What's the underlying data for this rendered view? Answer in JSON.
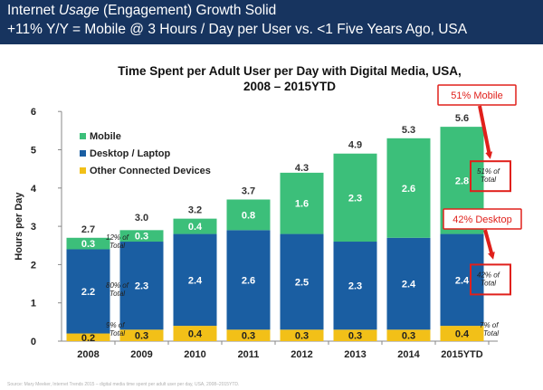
{
  "header": {
    "line1_a": "Internet ",
    "line1_b": "Usage",
    "line1_c": " (Engagement) Growth Solid",
    "line2": "+11% Y/Y = Mobile @ 3 Hours / Day per User vs. <1  Five Years Ago, USA",
    "bg_color": "#17345f"
  },
  "chart_data": {
    "type": "bar",
    "stacked": true,
    "title_line1": "Time Spent per Adult User per Day with Digital Media, USA,",
    "title_line2": "2008 – 2015YTD",
    "ylabel": "Hours per Day",
    "ylim": [
      0,
      6
    ],
    "yticks": [
      "0",
      "1",
      "2",
      "3",
      "4",
      "5",
      "6"
    ],
    "grid": false,
    "legend_position": "top-left",
    "categories": [
      "2008",
      "2009",
      "2010",
      "2011",
      "2012",
      "2013",
      "2014",
      "2015YTD"
    ],
    "series": [
      {
        "name": "Other Connected Devices",
        "color": "#f2c018",
        "values": [
          0.2,
          0.3,
          0.4,
          0.3,
          0.3,
          0.3,
          0.3,
          0.4
        ],
        "labels": [
          "0.2",
          "0.3",
          "0.4",
          "0.3",
          "0.3",
          "0.3",
          "0.3",
          "0.4"
        ]
      },
      {
        "name": "Desktop / Laptop",
        "color": "#1a5ea2",
        "values": [
          2.2,
          2.3,
          2.4,
          2.6,
          2.5,
          2.3,
          2.4,
          2.4
        ],
        "labels": [
          "2.2",
          "2.3",
          "2.4",
          "2.6",
          "2.5",
          "2.3",
          "2.4",
          "2.4"
        ]
      },
      {
        "name": "Mobile",
        "color": "#3cbf7a",
        "values": [
          0.3,
          0.3,
          0.4,
          0.8,
          1.6,
          2.3,
          2.6,
          2.8
        ],
        "labels": [
          "0.3",
          "0.3",
          "0.4",
          "0.8",
          "1.6",
          "2.3",
          "2.6",
          "2.8"
        ]
      }
    ],
    "totals": [
      2.7,
      3.0,
      3.2,
      3.7,
      4.3,
      4.9,
      5.3,
      5.6
    ],
    "total_labels": [
      "2.7",
      "3.0",
      "3.2",
      "3.7",
      "4.3",
      "4.9",
      "5.3",
      "5.6"
    ],
    "share_2008": {
      "mobile": {
        "line1": "12% of",
        "line2": "Total"
      },
      "desktop": {
        "line1": "80% of",
        "line2": "Total"
      },
      "other": {
        "line1": "9% of",
        "line2": "Total"
      }
    },
    "share_2015": {
      "mobile": {
        "line1": "51% of",
        "line2": "Total"
      },
      "desktop": {
        "line1": "42% of",
        "line2": "Total"
      },
      "other": {
        "line1": "7% of",
        "line2": "Total"
      }
    },
    "callouts": {
      "mobile": "51% Mobile",
      "desktop": "42% Desktop",
      "color": "#e0201b"
    }
  },
  "footnote": "Source: Mary Meeker, Internet Trends 2015 – digital media time spent per adult user per day, USA, 2008–2015YTD."
}
